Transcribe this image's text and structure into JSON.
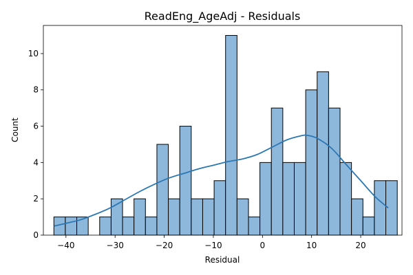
{
  "chart_data": {
    "type": "bar",
    "title": "ReadEng_AgeAdj - Residuals",
    "xlabel": "Residual",
    "ylabel": "Count",
    "xlim": [
      -44.6,
      28.4
    ],
    "ylim": [
      0,
      11.55
    ],
    "xticks": [
      -40,
      -30,
      -20,
      -10,
      0,
      10,
      20
    ],
    "yticks": [
      0,
      2,
      4,
      6,
      8,
      10
    ],
    "bin_start": -42.46,
    "bin_width": 2.33,
    "values": [
      1,
      1,
      1,
      0,
      1,
      2,
      1,
      2,
      1,
      5,
      2,
      6,
      2,
      2,
      3,
      11,
      2,
      1,
      4,
      7,
      4,
      4,
      8,
      9,
      7,
      4,
      2,
      1,
      3,
      3
    ],
    "bar_color": "#8db8dc",
    "bar_edge": "#000000",
    "kde_color": "#2a77b4",
    "kde": {
      "x": [
        -42.4,
        -40,
        -37,
        -34,
        -31,
        -28,
        -25,
        -22,
        -19,
        -16,
        -13,
        -10,
        -7,
        -4,
        -1,
        2,
        5,
        8,
        9,
        11,
        14,
        17,
        20,
        23,
        25.6
      ],
      "y": [
        0.5,
        0.65,
        0.85,
        1.15,
        1.5,
        1.95,
        2.4,
        2.8,
        3.15,
        3.4,
        3.65,
        3.85,
        4.05,
        4.2,
        4.45,
        4.85,
        5.25,
        5.48,
        5.5,
        5.35,
        4.8,
        3.9,
        3.0,
        2.1,
        1.5
      ]
    }
  }
}
